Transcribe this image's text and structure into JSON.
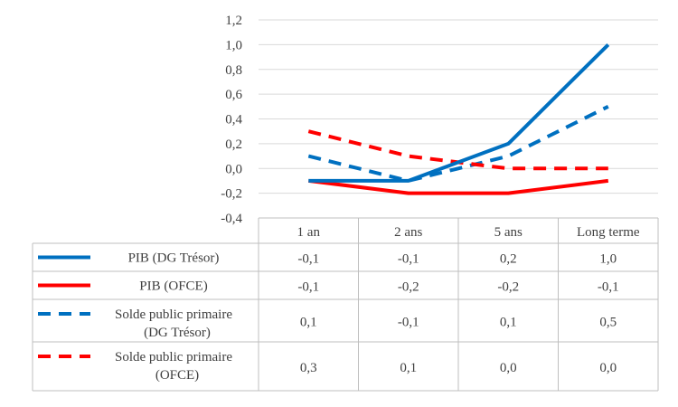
{
  "chart_data": {
    "type": "line",
    "categories": [
      "1 an",
      "2 ans",
      "5 ans",
      "Long terme"
    ],
    "ylim": [
      -0.4,
      1.2
    ],
    "y_ticks": [
      "1,2",
      "1,0",
      "0,8",
      "0,6",
      "0,4",
      "0,2",
      "0,0",
      "-0,2",
      "-0,4"
    ],
    "grid": true,
    "legend_placement": "table-left",
    "series": [
      {
        "name": "PIB (DG Trésor)",
        "name_lines": [
          "PIB (DG Trésor)"
        ],
        "values": [
          -0.1,
          -0.1,
          0.2,
          1.0
        ],
        "labels": [
          "-0,1",
          "-0,1",
          "0,2",
          "1,0"
        ],
        "color": "#0070C0",
        "style": "solid"
      },
      {
        "name": "PIB (OFCE)",
        "name_lines": [
          "PIB (OFCE)"
        ],
        "values": [
          -0.1,
          -0.2,
          -0.2,
          -0.1
        ],
        "labels": [
          "-0,1",
          "-0,2",
          "-0,2",
          "-0,1"
        ],
        "color": "#FF0000",
        "style": "solid"
      },
      {
        "name": "Solde public primaire (DG Trésor)",
        "name_lines": [
          "Solde public primaire",
          "(DG Trésor)"
        ],
        "values": [
          0.1,
          -0.1,
          0.1,
          0.5
        ],
        "labels": [
          "0,1",
          "-0,1",
          "0,1",
          "0,5"
        ],
        "color": "#0070C0",
        "style": "dashed"
      },
      {
        "name": "Solde public primaire (OFCE)",
        "name_lines": [
          "Solde public primaire",
          "(OFCE)"
        ],
        "values": [
          0.3,
          0.1,
          0.0,
          0.0
        ],
        "labels": [
          "0,3",
          "0,1",
          "0,0",
          "0,0"
        ],
        "color": "#FF0000",
        "style": "dashed"
      }
    ]
  }
}
